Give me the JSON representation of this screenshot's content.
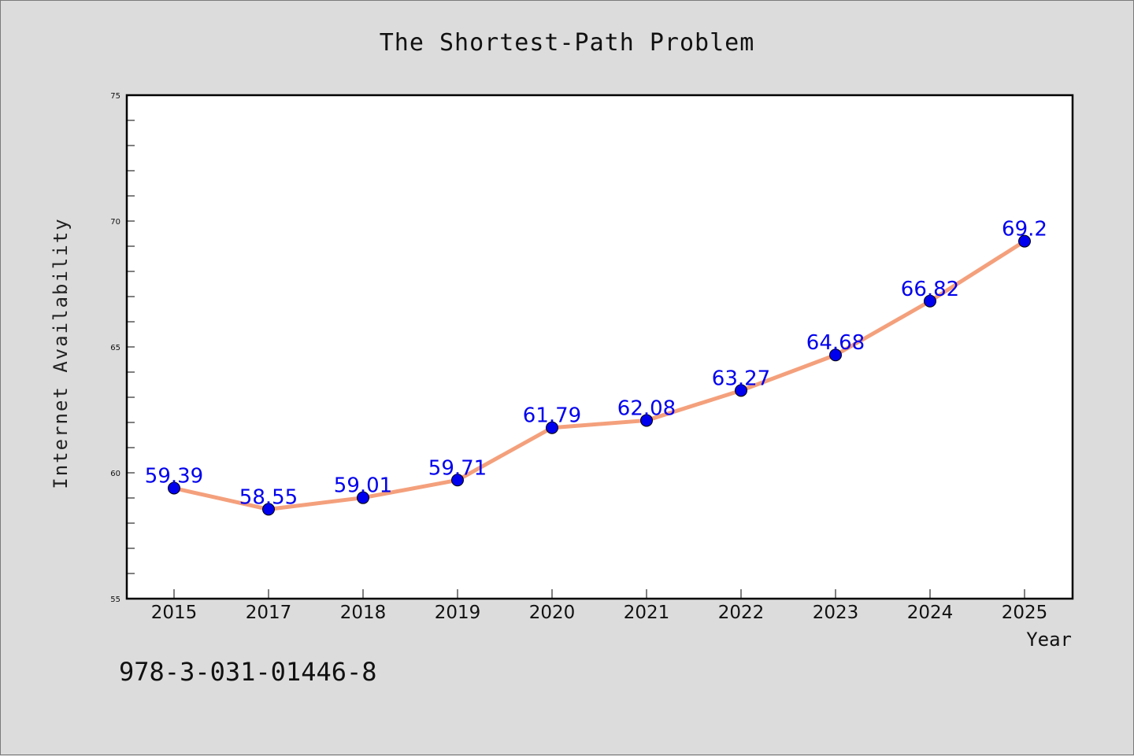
{
  "chart_data": {
    "type": "line",
    "title": "The Shortest-Path Problem",
    "xlabel": "Year",
    "ylabel": "Internet Availability",
    "categories": [
      "2015",
      "2017",
      "2018",
      "2019",
      "2020",
      "2021",
      "2022",
      "2023",
      "2024",
      "2025"
    ],
    "series": [
      {
        "values": [
          59.39,
          58.55,
          59.01,
          59.71,
          61.79,
          62.08,
          63.27,
          64.68,
          66.82,
          69.2
        ],
        "labels": [
          "59.39",
          "58.55",
          "59.01",
          "59.71",
          "61.79",
          "62.08",
          "63.27",
          "64.68",
          "66.82",
          "69.2"
        ]
      }
    ],
    "ylim": [
      55,
      75
    ],
    "yticks": [
      "55",
      "60",
      "65",
      "70",
      "75"
    ],
    "ytick_values": [
      55,
      60,
      65,
      70,
      75
    ],
    "minor_ytick_step": 1,
    "grid": false,
    "colors": {
      "line": "#f4a07c",
      "marker": "#0000ee",
      "label": "#0000ee",
      "plot_background": "#ffffff",
      "figure_background": "#dcdcdc"
    }
  },
  "footer": {
    "isbn": "978-3-031-01446-8"
  }
}
